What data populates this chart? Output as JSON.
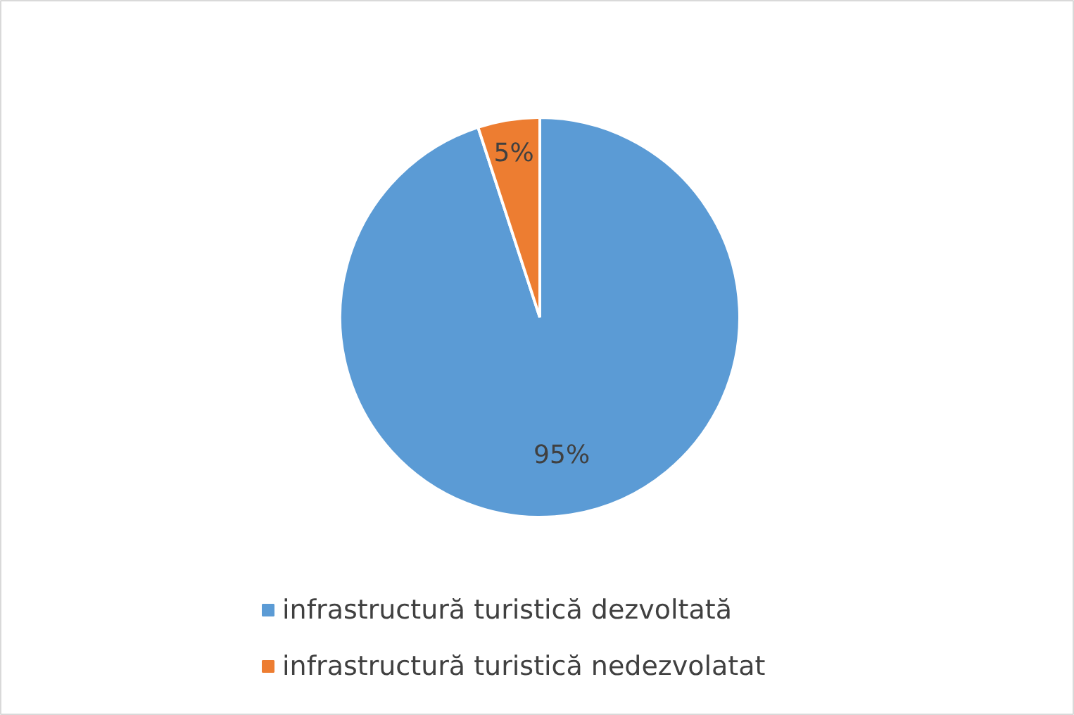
{
  "chart_data": {
    "type": "pie",
    "categories": [
      "infrastructură turistică dezvoltată",
      "infrastructură turistică nedezvolatat"
    ],
    "values": [
      95,
      5
    ],
    "colors": [
      "#5b9bd5",
      "#ed7d31"
    ],
    "value_labels": [
      "95%",
      "5%"
    ],
    "legend": "bottom"
  }
}
